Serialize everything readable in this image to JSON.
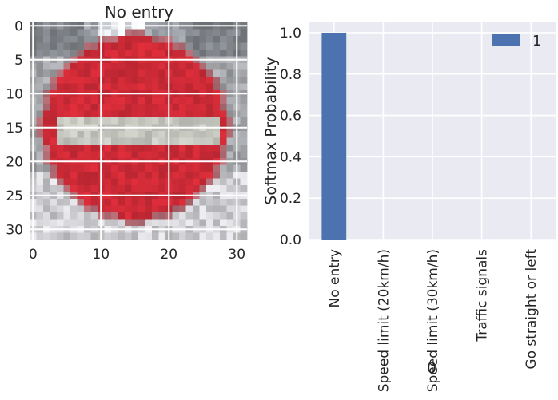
{
  "chart_data": [
    {
      "type": "image",
      "title": "No entry",
      "xticks": [
        "0",
        "10",
        "20",
        "30"
      ],
      "yticks": [
        "0",
        "5",
        "10",
        "15",
        "20",
        "25",
        "30"
      ],
      "image_size": [
        32,
        32
      ],
      "depicts": "no-entry-sign",
      "colors": {
        "sign_red": "#cc2a36",
        "bar_white": "#c4c6be",
        "background_gray": "#a2a4a8"
      }
    },
    {
      "type": "bar",
      "categories": [
        "No entry",
        "Speed limit (20km/h)",
        "Speed limit (30km/h)",
        "Traffic signals",
        "Go straight or left"
      ],
      "series": [
        {
          "name": "1",
          "values": [
            1.0,
            0.0,
            0.0,
            0.0,
            0.0
          ],
          "color": "#4c72b0"
        }
      ],
      "xlabel": "0",
      "ylabel": "Softmax Probability",
      "ylim": [
        0,
        1.05
      ],
      "yticks": [
        "0.0",
        "0.2",
        "0.4",
        "0.6",
        "0.8",
        "1.0"
      ],
      "grid": true,
      "legend": "top-right",
      "plot_background": "#eaeaf2"
    }
  ]
}
